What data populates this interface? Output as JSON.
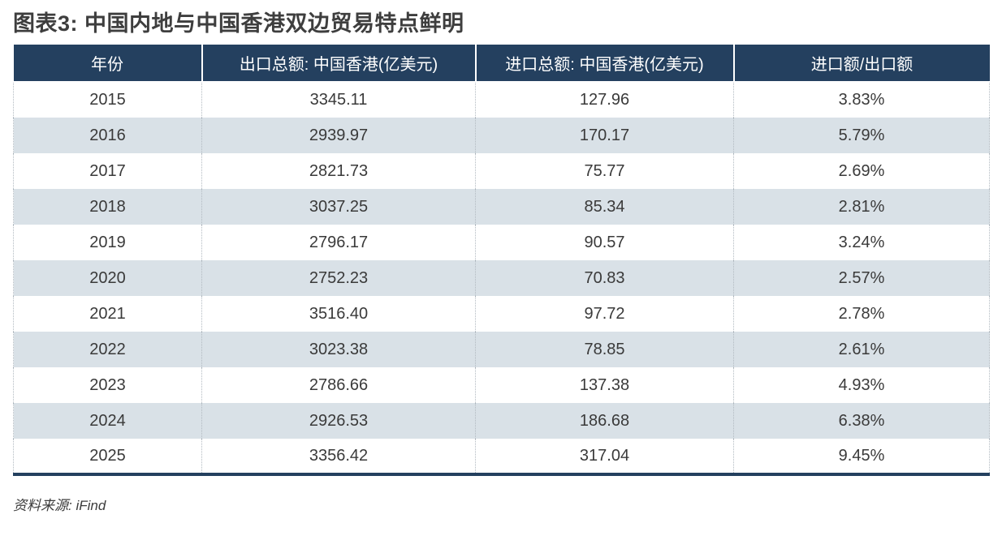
{
  "title": "图表3: 中国内地与中国香港双边贸易特点鲜明",
  "source_note": "资料来源: iFind",
  "colors": {
    "header_bg": "#24405f",
    "row_alt_bg": "#d9e1e7",
    "table_border": "#24405f",
    "header_text": "#ffffff",
    "cell_text": "#3a3a3a",
    "title_text": "#3e3e3e"
  },
  "chart_data": {
    "type": "table",
    "title": "图表3: 中国内地与中国香港双边贸易特点鲜明",
    "columns": [
      "年份",
      "出口总额: 中国香港(亿美元)",
      "进口总额: 中国香港(亿美元)",
      "进口额/出口额"
    ],
    "rows": [
      [
        "2015",
        "3345.11",
        "127.96",
        "3.83%"
      ],
      [
        "2016",
        "2939.97",
        "170.17",
        "5.79%"
      ],
      [
        "2017",
        "2821.73",
        "75.77",
        "2.69%"
      ],
      [
        "2018",
        "3037.25",
        "85.34",
        "2.81%"
      ],
      [
        "2019",
        "2796.17",
        "90.57",
        "3.24%"
      ],
      [
        "2020",
        "2752.23",
        "70.83",
        "2.57%"
      ],
      [
        "2021",
        "3516.40",
        "97.72",
        "2.78%"
      ],
      [
        "2022",
        "3023.38",
        "78.85",
        "2.61%"
      ],
      [
        "2023",
        "2786.66",
        "137.38",
        "4.93%"
      ],
      [
        "2024",
        "2926.53",
        "186.68",
        "6.38%"
      ],
      [
        "2025",
        "3356.42",
        "317.04",
        "9.45%"
      ]
    ]
  }
}
